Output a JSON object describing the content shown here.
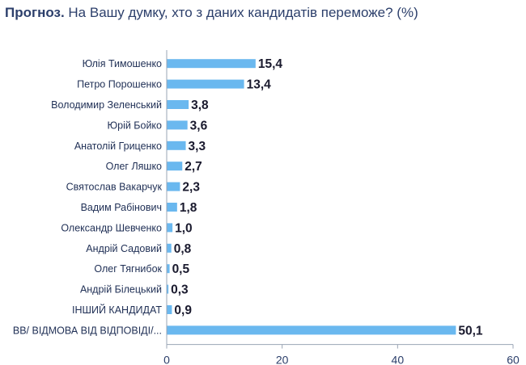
{
  "title": {
    "bold": "Прогноз.",
    "text": " На Вашу думку, хто з даних кандидатів переможе? (%)"
  },
  "colors": {
    "bar": "#6ab8ef",
    "title": "#2c3f6b",
    "axis": "#9aa4b4"
  },
  "chart_data": {
    "type": "bar",
    "orientation": "horizontal",
    "title": "Прогноз. На Вашу думку, хто з даних кандидатів переможе? (%)",
    "categories": [
      "Юлія Тимошенко",
      "Петро Порошенко",
      "Володимир Зеленський",
      "Юрій Бойко",
      "Анатолій Гриценко",
      "Олег Ляшко",
      "Святослав Вакарчук",
      "Вадим Рабінович",
      "Олександр Шевченко",
      "Андрій Садовий",
      "Олег Тягнибок",
      "Андрій Білецький",
      "ІНШИЙ КАНДИДАТ",
      "ВВ/ ВІДМОВА ВІД ВІДПОВІДІ/..."
    ],
    "values": [
      15.4,
      13.4,
      3.8,
      3.6,
      3.3,
      2.7,
      2.3,
      1.8,
      1.0,
      0.8,
      0.5,
      0.3,
      0.9,
      50.1
    ],
    "value_labels": [
      "15,4",
      "13,4",
      "3,8",
      "3,6",
      "3,3",
      "2,7",
      "2,3",
      "1,8",
      "1,0",
      "0,8",
      "0,5",
      "0,3",
      "0,9",
      "50,1"
    ],
    "xlim": [
      0,
      60
    ],
    "ticks": [
      0,
      20,
      40,
      60
    ],
    "tick_labels": [
      "0",
      "20",
      "40",
      "60"
    ],
    "grid": false,
    "legend": "none"
  }
}
